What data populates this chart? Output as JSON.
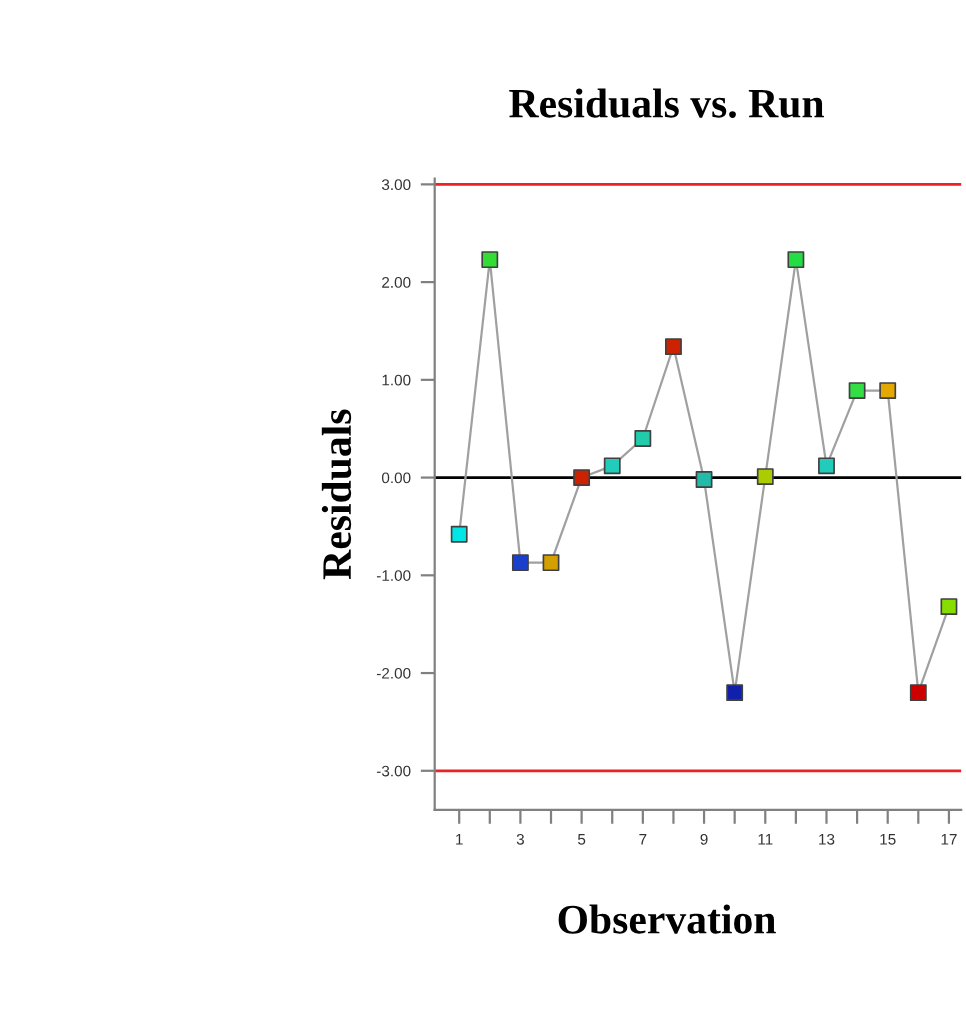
{
  "chart_data": {
    "type": "line",
    "title": "Residuals vs. Run",
    "xlabel": "Observation",
    "ylabel": "Residuals",
    "x": [
      1,
      2,
      3,
      4,
      5,
      6,
      7,
      8,
      9,
      10,
      11,
      12,
      13,
      14,
      15,
      16,
      17
    ],
    "values": [
      -0.58,
      2.23,
      -0.87,
      -0.87,
      0.0,
      0.12,
      0.4,
      1.34,
      -0.02,
      -2.2,
      0.01,
      2.23,
      0.12,
      0.89,
      0.89,
      -2.2,
      -1.32
    ],
    "color": "#a0a0a0",
    "colors": [
      "#00e5e5",
      "#33dd33",
      "#1a3fcc",
      "#d4a000",
      "#cc2200",
      "#22ccbb",
      "#22ccaa",
      "#cc2200",
      "#22bbaa",
      "#1020aa",
      "#aacc00",
      "#22dd44",
      "#22ccbb",
      "#33dd44",
      "#e5a800",
      "#cc0000",
      "#88dd00"
    ],
    "marker": "square",
    "line_style": "solid",
    "grid": false,
    "legend": false,
    "xlim": [
      0.2,
      17.4
    ],
    "ylim": [
      -3.4,
      3.06
    ],
    "xticks": [
      1,
      {
        "value": 2,
        "label": null
      },
      3,
      {
        "value": 4,
        "label": null
      },
      5,
      {
        "value": 6,
        "label": null
      },
      7,
      {
        "value": 8,
        "label": null
      },
      9,
      {
        "value": 10,
        "label": null
      },
      11,
      {
        "value": 12,
        "label": null
      },
      13,
      {
        "value": 14,
        "label": null
      },
      15,
      {
        "value": 16,
        "label": null
      },
      17
    ],
    "yticks": [
      {
        "value": -3,
        "label": "-3.00"
      },
      {
        "value": -2,
        "label": "-2.00"
      },
      {
        "value": -1,
        "label": "-1.00"
      },
      {
        "value": 0,
        "label": "0.00"
      },
      {
        "value": 1,
        "label": "1.00"
      },
      {
        "value": 2,
        "label": "2.00"
      },
      {
        "value": 3,
        "label": "3.00"
      }
    ],
    "ref_lines": [
      {
        "axis": "y",
        "value": 3,
        "color": "#ee2222"
      },
      {
        "axis": "y",
        "value": -3,
        "color": "#ee2222"
      },
      {
        "axis": "y",
        "value": 0,
        "color": "#000000"
      }
    ]
  }
}
